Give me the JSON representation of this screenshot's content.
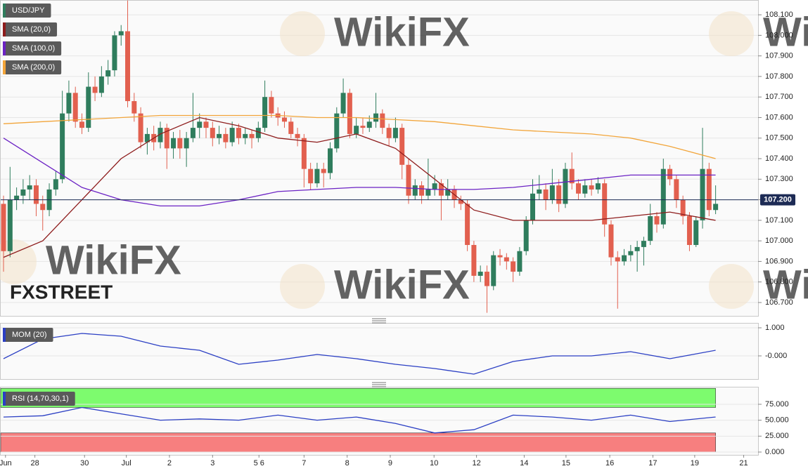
{
  "chart_data": [
    {
      "type": "candlestick",
      "name": "USD/JPY",
      "up_color": "#2f7d5d",
      "down_color": "#e2604f",
      "watermark": "WikiFX",
      "brand": "FXSTREET",
      "xlim": [
        -0.54,
        115.5
      ],
      "ylim": [
        106.635,
        108.172
      ],
      "grid": true,
      "yticks": [
        {
          "value": 106.7,
          "label": "106.700"
        },
        {
          "value": 106.8,
          "label": "106.800"
        },
        {
          "value": 106.9,
          "label": "106.900"
        },
        {
          "value": 107.0,
          "label": "107.000"
        },
        {
          "value": 107.1,
          "label": "107.100"
        },
        {
          "value": 107.2,
          "label": "107.200"
        },
        {
          "value": 107.3,
          "label": "107.300"
        },
        {
          "value": 107.4,
          "label": "107.400"
        },
        {
          "value": 107.5,
          "label": "107.500"
        },
        {
          "value": 107.6,
          "label": "107.600"
        },
        {
          "value": 107.7,
          "label": "107.700"
        },
        {
          "value": 107.8,
          "label": "107.800"
        },
        {
          "value": 107.9,
          "label": "107.900"
        },
        {
          "value": 108.0,
          "label": "108.000"
        },
        {
          "value": 108.1,
          "label": "108.100"
        }
      ],
      "last_price": {
        "value": 107.2,
        "label": "107.200"
      },
      "ohlc": [
        [
          107.18,
          107.22,
          106.85,
          106.95
        ],
        [
          106.95,
          107.36,
          106.92,
          107.2
        ],
        [
          107.2,
          107.26,
          107.15,
          107.22
        ],
        [
          107.22,
          107.3,
          107.18,
          107.25
        ],
        [
          107.25,
          107.32,
          107.2,
          107.27
        ],
        [
          107.27,
          107.3,
          107.12,
          107.18
        ],
        [
          107.18,
          107.22,
          107.05,
          107.15
        ],
        [
          107.15,
          107.28,
          107.12,
          107.25
        ],
        [
          107.25,
          107.34,
          107.22,
          107.3
        ],
        [
          107.3,
          107.73,
          107.28,
          107.62
        ],
        [
          107.62,
          107.78,
          107.58,
          107.72
        ],
        [
          107.72,
          107.75,
          107.55,
          107.58
        ],
        [
          107.58,
          107.62,
          107.52,
          107.55
        ],
        [
          107.55,
          107.82,
          107.53,
          107.75
        ],
        [
          107.75,
          107.8,
          107.68,
          107.72
        ],
        [
          107.72,
          107.85,
          107.7,
          107.8
        ],
        [
          107.8,
          107.88,
          107.76,
          107.83
        ],
        [
          107.83,
          108.02,
          107.8,
          108.0
        ],
        [
          108.0,
          108.05,
          107.95,
          108.02
        ],
        [
          108.02,
          108.17,
          107.65,
          107.68
        ],
        [
          107.68,
          107.72,
          107.58,
          107.62
        ],
        [
          107.62,
          107.65,
          107.45,
          107.48
        ],
        [
          107.48,
          107.55,
          107.42,
          107.52
        ],
        [
          107.52,
          107.56,
          107.44,
          107.48
        ],
        [
          107.48,
          107.58,
          107.45,
          107.55
        ],
        [
          107.55,
          107.57,
          107.35,
          107.45
        ],
        [
          107.45,
          107.53,
          107.4,
          107.5
        ],
        [
          107.5,
          107.54,
          107.4,
          107.45
        ],
        [
          107.45,
          107.53,
          107.36,
          107.5
        ],
        [
          107.5,
          107.72,
          107.48,
          107.55
        ],
        [
          107.55,
          107.62,
          107.5,
          107.58
        ],
        [
          107.58,
          107.6,
          107.5,
          107.55
        ],
        [
          107.55,
          107.58,
          107.46,
          107.5
        ],
        [
          107.5,
          107.56,
          107.47,
          107.52
        ],
        [
          107.52,
          107.55,
          107.45,
          107.48
        ],
        [
          107.48,
          107.58,
          107.46,
          107.55
        ],
        [
          107.55,
          107.57,
          107.47,
          107.5
        ],
        [
          107.5,
          107.55,
          107.47,
          107.52
        ],
        [
          107.52,
          107.54,
          107.45,
          107.5
        ],
        [
          107.5,
          107.58,
          107.48,
          107.55
        ],
        [
          107.55,
          107.78,
          107.53,
          107.7
        ],
        [
          107.7,
          107.73,
          107.6,
          107.62
        ],
        [
          107.62,
          107.65,
          107.56,
          107.6
        ],
        [
          107.6,
          107.63,
          107.55,
          107.58
        ],
        [
          107.58,
          107.6,
          107.5,
          107.52
        ],
        [
          107.52,
          107.55,
          107.46,
          107.5
        ],
        [
          107.5,
          107.52,
          107.26,
          107.35
        ],
        [
          107.35,
          107.38,
          107.25,
          107.28
        ],
        [
          107.28,
          107.38,
          107.26,
          107.35
        ],
        [
          107.35,
          107.38,
          107.26,
          107.33
        ],
        [
          107.33,
          107.48,
          107.3,
          107.45
        ],
        [
          107.45,
          107.65,
          107.43,
          107.62
        ],
        [
          107.62,
          107.79,
          107.6,
          107.72
        ],
        [
          107.72,
          107.74,
          107.5,
          107.52
        ],
        [
          107.52,
          107.6,
          107.5,
          107.56
        ],
        [
          107.56,
          107.6,
          107.52,
          107.55
        ],
        [
          107.55,
          107.61,
          107.53,
          107.58
        ],
        [
          107.58,
          107.72,
          107.55,
          107.62
        ],
        [
          107.62,
          107.64,
          107.52,
          107.55
        ],
        [
          107.55,
          107.57,
          107.46,
          107.5
        ],
        [
          107.5,
          107.6,
          107.48,
          107.55
        ],
        [
          107.55,
          107.57,
          107.3,
          107.37
        ],
        [
          107.37,
          107.4,
          107.18,
          107.22
        ],
        [
          107.22,
          107.3,
          107.2,
          107.27
        ],
        [
          107.27,
          107.29,
          107.18,
          107.22
        ],
        [
          107.22,
          107.4,
          107.2,
          107.25
        ],
        [
          107.25,
          107.32,
          107.22,
          107.28
        ],
        [
          107.28,
          107.3,
          107.1,
          107.22
        ],
        [
          107.22,
          107.3,
          107.2,
          107.25
        ],
        [
          107.25,
          107.27,
          107.16,
          107.2
        ],
        [
          107.2,
          107.22,
          107.15,
          107.18
        ],
        [
          107.18,
          107.2,
          106.95,
          106.98
        ],
        [
          106.98,
          107.0,
          106.8,
          106.83
        ],
        [
          106.83,
          106.88,
          106.8,
          106.85
        ],
        [
          106.85,
          106.88,
          106.65,
          106.78
        ],
        [
          106.78,
          106.95,
          106.76,
          106.93
        ],
        [
          106.93,
          106.96,
          106.88,
          106.92
        ],
        [
          106.92,
          106.94,
          106.86,
          106.9
        ],
        [
          106.9,
          106.92,
          106.8,
          106.85
        ],
        [
          106.85,
          106.97,
          106.83,
          106.95
        ],
        [
          106.95,
          107.12,
          106.93,
          107.1
        ],
        [
          107.1,
          107.3,
          107.08,
          107.23
        ],
        [
          107.23,
          107.32,
          107.2,
          107.25
        ],
        [
          107.25,
          107.28,
          107.15,
          107.2
        ],
        [
          107.2,
          107.35,
          107.18,
          107.27
        ],
        [
          107.27,
          107.3,
          107.14,
          107.18
        ],
        [
          107.18,
          107.38,
          107.16,
          107.35
        ],
        [
          107.35,
          107.43,
          107.25,
          107.28
        ],
        [
          107.28,
          107.3,
          107.2,
          107.23
        ],
        [
          107.23,
          107.3,
          107.21,
          107.27
        ],
        [
          107.27,
          107.3,
          107.22,
          107.25
        ],
        [
          107.25,
          107.31,
          107.23,
          107.28
        ],
        [
          107.28,
          107.3,
          107.02,
          107.08
        ],
        [
          107.08,
          107.1,
          106.88,
          106.92
        ],
        [
          106.92,
          106.95,
          106.67,
          106.9
        ],
        [
          106.9,
          106.96,
          106.88,
          106.93
        ],
        [
          106.93,
          106.98,
          106.9,
          106.95
        ],
        [
          106.95,
          107.0,
          106.85,
          106.97
        ],
        [
          106.97,
          107.02,
          106.88,
          107.0
        ],
        [
          107.0,
          107.18,
          106.98,
          107.12
        ],
        [
          107.12,
          107.14,
          107.04,
          107.08
        ],
        [
          107.08,
          107.4,
          107.06,
          107.35
        ],
        [
          107.35,
          107.37,
          107.27,
          107.3
        ],
        [
          107.3,
          107.32,
          107.16,
          107.2
        ],
        [
          107.2,
          107.22,
          107.08,
          107.12
        ],
        [
          107.12,
          107.14,
          106.95,
          106.98
        ],
        [
          106.98,
          107.12,
          106.97,
          107.1
        ],
        [
          107.1,
          107.55,
          107.06,
          107.35
        ],
        [
          107.35,
          107.38,
          107.12,
          107.15
        ],
        [
          107.15,
          107.27,
          107.13,
          107.18
        ]
      ],
      "series": [
        {
          "name": "SMA (20,0)",
          "color": "#8e1c1c",
          "x": [
            0,
            6,
            12,
            18,
            24,
            30,
            36,
            42,
            48,
            54,
            60,
            66,
            72,
            78,
            84,
            90,
            96,
            102,
            109
          ],
          "values": [
            106.92,
            107.0,
            107.2,
            107.4,
            107.52,
            107.6,
            107.56,
            107.5,
            107.48,
            107.52,
            107.45,
            107.3,
            107.15,
            107.1,
            107.1,
            107.1,
            107.12,
            107.14,
            107.1
          ]
        },
        {
          "name": "SMA (100,0)",
          "color": "#6b22c4",
          "x": [
            0,
            6,
            12,
            18,
            24,
            30,
            36,
            42,
            48,
            54,
            60,
            66,
            72,
            78,
            84,
            90,
            96,
            102,
            109
          ],
          "values": [
            107.5,
            107.38,
            107.26,
            107.2,
            107.17,
            107.17,
            107.2,
            107.24,
            107.25,
            107.26,
            107.26,
            107.25,
            107.25,
            107.26,
            107.28,
            107.3,
            107.32,
            107.32,
            107.32
          ]
        },
        {
          "name": "SMA (200,0)",
          "color": "#f2a53a",
          "x": [
            0,
            6,
            12,
            18,
            24,
            30,
            36,
            42,
            48,
            54,
            60,
            66,
            72,
            78,
            84,
            90,
            96,
            102,
            109
          ],
          "values": [
            107.57,
            107.58,
            107.59,
            107.6,
            107.61,
            107.61,
            107.61,
            107.61,
            107.6,
            107.6,
            107.59,
            107.58,
            107.56,
            107.54,
            107.53,
            107.52,
            107.5,
            107.46,
            107.4
          ]
        }
      ]
    },
    {
      "type": "line",
      "xlim": [
        -0.54,
        115.5
      ],
      "ylim": [
        -0.825,
        1.175
      ],
      "grid": true,
      "yticks": [
        {
          "value": 1,
          "label": "1.000"
        },
        {
          "value": 0,
          "label": "-0.000"
        }
      ],
      "series": [
        {
          "name": "MOM (20)",
          "color": "#2b3fc4",
          "x": [
            0,
            6,
            12,
            18,
            24,
            30,
            36,
            42,
            48,
            54,
            60,
            66,
            72,
            78,
            84,
            90,
            96,
            102,
            109
          ],
          "values": [
            -0.1,
            0.6,
            0.8,
            0.7,
            0.35,
            0.2,
            -0.3,
            -0.15,
            0.05,
            -0.1,
            -0.3,
            -0.45,
            -0.65,
            -0.2,
            0.0,
            0.0,
            0.15,
            -0.1,
            0.2
          ]
        }
      ]
    },
    {
      "type": "line",
      "xlim": [
        -0.54,
        115.5
      ],
      "ylim": [
        -4.4,
        102.5
      ],
      "grid": true,
      "yticks": [
        {
          "value": 0,
          "label": "0.000"
        },
        {
          "value": 25,
          "label": "25.000"
        },
        {
          "value": 50,
          "label": "50.000"
        },
        {
          "value": 75,
          "label": "75.000"
        }
      ],
      "bands": [
        {
          "from": 70,
          "to": 100,
          "color": "#7dfb6e"
        },
        {
          "from": 0,
          "to": 30,
          "color": "#f77f7f"
        }
      ],
      "series": [
        {
          "name": "RSI (14,70,30,1)",
          "color": "#2b3fc4",
          "x": [
            0,
            6,
            12,
            18,
            24,
            30,
            36,
            42,
            48,
            54,
            60,
            66,
            72,
            78,
            84,
            90,
            96,
            102,
            109
          ],
          "values": [
            55,
            57,
            70,
            60,
            50,
            52,
            50,
            58,
            50,
            55,
            45,
            30,
            35,
            58,
            55,
            50,
            58,
            48,
            55
          ]
        }
      ],
      "xticks": [
        {
          "value": 0.3,
          "label": "Jun"
        },
        {
          "value": 4.8,
          "label": "28"
        },
        {
          "value": 12.4,
          "label": "30"
        },
        {
          "value": 18.8,
          "label": "Jul"
        },
        {
          "value": 25.4,
          "label": "2"
        },
        {
          "value": 32.0,
          "label": "3"
        },
        {
          "value": 39.1,
          "label": "5 6"
        },
        {
          "value": 46.0,
          "label": "7"
        },
        {
          "value": 52.6,
          "label": "8"
        },
        {
          "value": 59.2,
          "label": "9"
        },
        {
          "value": 65.9,
          "label": "10"
        },
        {
          "value": 72.4,
          "label": "12"
        },
        {
          "value": 79.7,
          "label": "14"
        },
        {
          "value": 86.1,
          "label": "15"
        },
        {
          "value": 92.8,
          "label": "16"
        },
        {
          "value": 99.4,
          "label": "17"
        },
        {
          "value": 105.8,
          "label": "19"
        },
        {
          "value": 113.3,
          "label": "21"
        }
      ]
    }
  ]
}
